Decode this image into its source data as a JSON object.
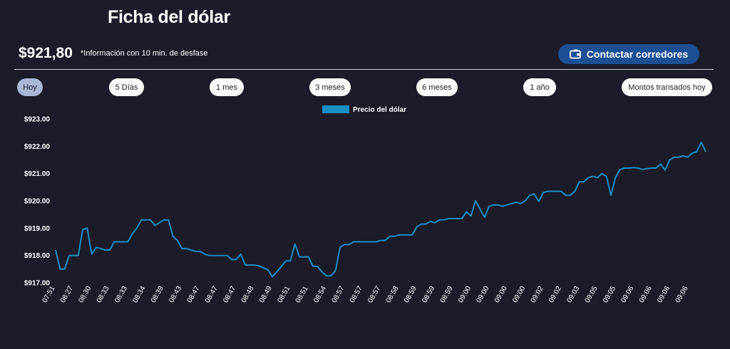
{
  "header": {
    "title": "Ficha del dólar",
    "price": "$921,80",
    "note": "*Información con 10 min. de desfase",
    "contact_label": "Contactar corredores"
  },
  "tabs": [
    {
      "label": "Hoy",
      "active": true
    },
    {
      "label": "5 Días",
      "active": false
    },
    {
      "label": "1 mes",
      "active": false
    },
    {
      "label": "3 meses",
      "active": false
    },
    {
      "label": "6 meses",
      "active": false
    },
    {
      "label": "1 año",
      "active": false
    },
    {
      "label": "Montos transados hoy",
      "active": false
    }
  ],
  "colors": {
    "background": "#1b1b29",
    "accent": "#1d4f95",
    "line": "#1b8fc4",
    "active_tab": "#a9b6d6"
  },
  "icons": {
    "contact": "wallet-icon"
  },
  "chart_data": {
    "type": "line",
    "title": "",
    "xlabel": "",
    "ylabel": "",
    "ylim": [
      917.0,
      923.0
    ],
    "yticks": [
      "$917.00",
      "$918.00",
      "$919.00",
      "$920.00",
      "$921.00",
      "$922.00",
      "$923.00"
    ],
    "ytick_values": [
      917,
      918,
      919,
      920,
      921,
      922,
      923
    ],
    "xtick_labels": [
      "07:51",
      "08:27",
      "08:30",
      "08:33",
      "08:33",
      "08:34",
      "08:39",
      "08:43",
      "08:47",
      "08:47",
      "08:47",
      "08:48",
      "08:49",
      "08:51",
      "08:51",
      "08:54",
      "08:57",
      "08:57",
      "08:57",
      "08:58",
      "08:59",
      "08:59",
      "08:59",
      "09:00",
      "09:00",
      "09:00",
      "09:00",
      "09:02",
      "09:02",
      "09:03",
      "09:05",
      "09:05",
      "09:06",
      "09:06",
      "09:06",
      "09:06"
    ],
    "legend": "top-center",
    "grid": false,
    "series": [
      {
        "name": "Precio del dólar",
        "values": [
          918.2,
          917.5,
          917.5,
          918.0,
          918.0,
          918.0,
          918.95,
          919.0,
          918.05,
          918.3,
          918.25,
          918.2,
          918.2,
          918.5,
          918.5,
          918.5,
          918.5,
          918.8,
          919.0,
          919.3,
          919.3,
          919.3,
          919.1,
          919.2,
          919.3,
          919.3,
          918.7,
          918.55,
          918.25,
          918.25,
          918.2,
          918.15,
          918.15,
          918.05,
          918.0,
          918.0,
          918.0,
          918.0,
          918.0,
          917.85,
          917.85,
          918.05,
          917.65,
          917.65,
          917.65,
          917.62,
          917.55,
          917.48,
          917.22,
          917.4,
          917.6,
          917.8,
          917.8,
          918.42,
          917.95,
          917.95,
          917.95,
          917.6,
          917.6,
          917.4,
          917.25,
          917.25,
          917.45,
          918.3,
          918.4,
          918.4,
          918.5,
          918.5,
          918.5,
          918.5,
          918.5,
          918.5,
          918.55,
          918.55,
          918.7,
          918.7,
          918.75,
          918.75,
          918.75,
          918.75,
          919.05,
          919.15,
          919.15,
          919.25,
          919.2,
          919.3,
          919.3,
          919.35,
          919.35,
          919.35,
          919.35,
          919.6,
          919.45,
          920.0,
          919.7,
          919.4,
          919.8,
          919.85,
          919.85,
          919.8,
          919.85,
          919.9,
          919.95,
          919.9,
          920.0,
          920.2,
          920.25,
          919.98,
          920.3,
          920.35,
          920.35,
          920.35,
          920.35,
          920.2,
          920.2,
          920.35,
          920.7,
          920.7,
          920.85,
          920.9,
          920.85,
          921.0,
          920.9,
          920.2,
          920.85,
          921.15,
          921.2,
          921.2,
          921.22,
          921.2,
          921.15,
          921.18,
          921.2,
          921.2,
          921.35,
          921.12,
          921.5,
          921.6,
          921.6,
          921.65,
          921.6,
          921.75,
          921.8,
          922.15,
          921.8
        ]
      }
    ]
  }
}
